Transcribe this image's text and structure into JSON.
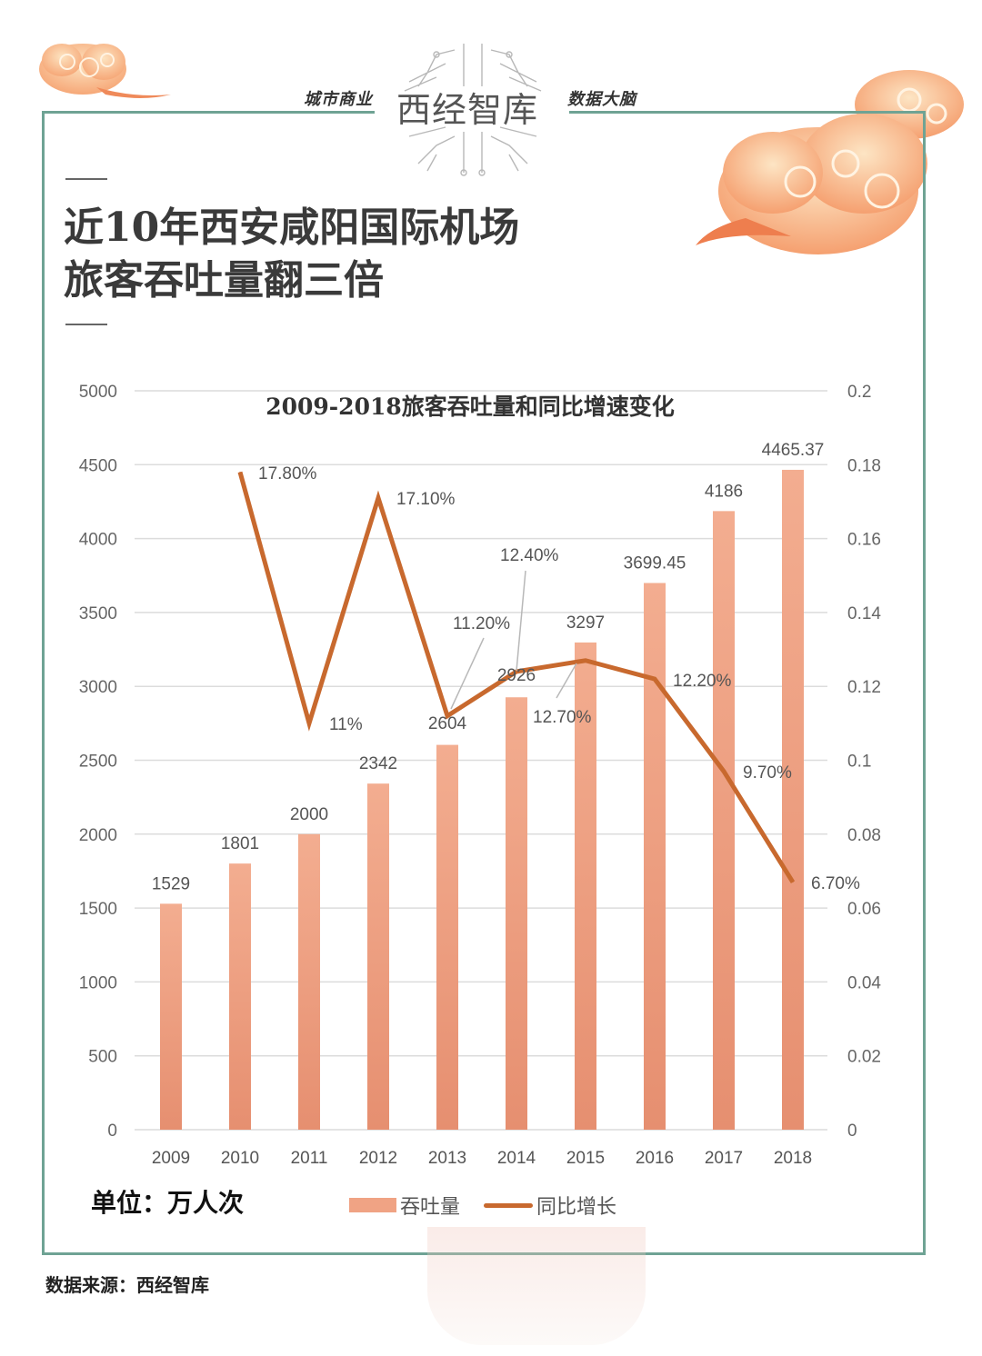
{
  "header": {
    "brand_left": "城市商业",
    "brand_name": "西经智库",
    "brand_right": "数据大脑"
  },
  "title": {
    "line1": "近10年西安咸阳国际机场",
    "line2": "旅客吞吐量翻三倍"
  },
  "chart_data": {
    "type": "bar",
    "title": "2009-2018旅客吞吐量和同比增速变化",
    "categories": [
      "2009",
      "2010",
      "2011",
      "2012",
      "2013",
      "2014",
      "2015",
      "2016",
      "2017",
      "2018"
    ],
    "series": [
      {
        "name": "吞吐量",
        "type": "bar",
        "axis": "left",
        "color": "#f0a384",
        "values": [
          1529,
          1801,
          2000,
          2342,
          2604,
          2926,
          3297,
          3699.45,
          4186,
          4465.37
        ],
        "labels": [
          "1529",
          "1801",
          "2000",
          "2342",
          "2604",
          "2926",
          "3297",
          "3699.45",
          "4186",
          "4465.37"
        ]
      },
      {
        "name": "同比增长",
        "type": "line",
        "axis": "right",
        "color": "#c8692e",
        "values": [
          null,
          0.178,
          0.11,
          0.171,
          0.112,
          0.124,
          0.127,
          0.122,
          0.097,
          0.067
        ],
        "labels": [
          null,
          "17.80%",
          "11%",
          "17.10%",
          "11.20%",
          "12.40%",
          "12.70%",
          "12.20%",
          "9.70%",
          "6.70%"
        ]
      }
    ],
    "y_left": {
      "min": 0,
      "max": 5000,
      "ticks": [
        "0",
        "500",
        "1000",
        "1500",
        "2000",
        "2500",
        "3000",
        "3500",
        "4000",
        "4500",
        "5000"
      ]
    },
    "y_right": {
      "min": 0,
      "max": 0.2,
      "ticks": [
        "0",
        "0.02",
        "0.04",
        "0.06",
        "0.08",
        "0.1",
        "0.12",
        "0.14",
        "0.16",
        "0.18",
        "0.2"
      ]
    },
    "grid": true,
    "legend": "bottom",
    "unit": "单位：万人次"
  },
  "footer": {
    "source": "数据来源：西经智库"
  }
}
